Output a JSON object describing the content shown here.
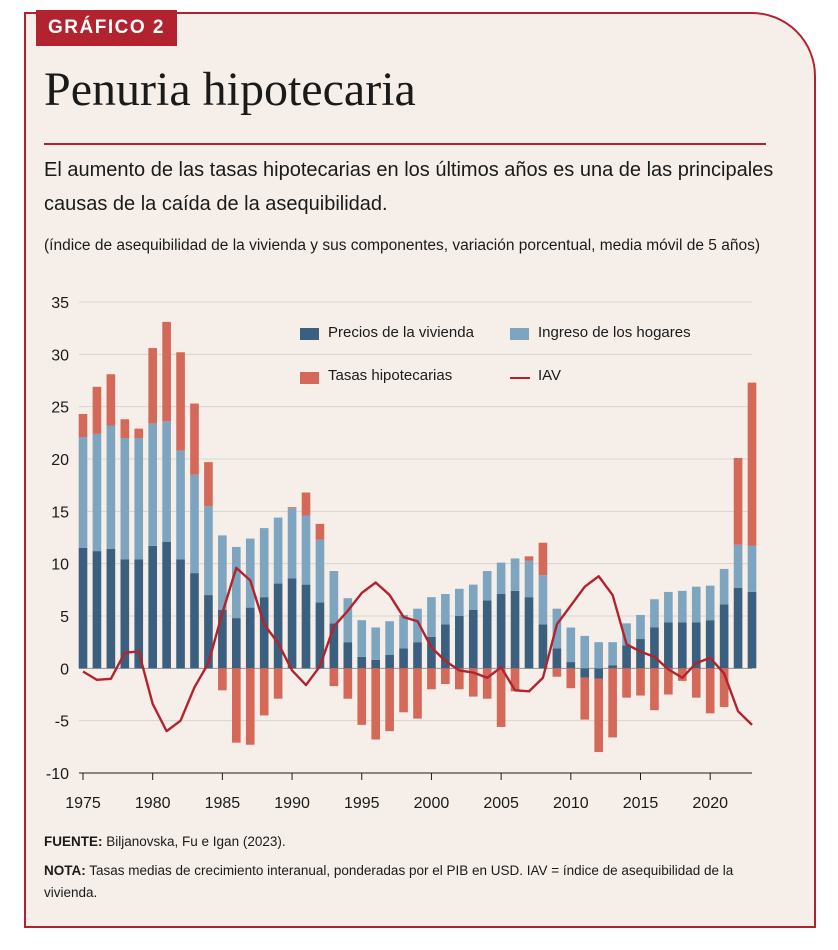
{
  "header": {
    "badge": "GRÁFICO 2",
    "title": "Penuria hipotecaria",
    "subtitle": "El aumento de las tasas hipotecarias en los últimos años es una de las principales causas de la caída de la asequibilidad.",
    "units": "(índice de asequibilidad de la vivienda y sus componentes, variación porcentual, media móvil de 5 años)"
  },
  "footer": {
    "source_label": "FUENTE:",
    "source_text": " Biljanovska, Fu e Igan (2023).",
    "note_label": "NOTA:",
    "note_text": " Tasas medias de crecimiento interanual, ponderadas por el PIB en USD. IAV = índice de asequibilidad de la vivienda."
  },
  "colors": {
    "prices": "#3a5f7f",
    "income": "#7ea5c0",
    "rates": "#d4695a",
    "iav": "#b3232f",
    "frame": "#b3232f",
    "background": "#f6efe9",
    "grid": "#d9d3ce"
  },
  "chart_data": {
    "type": "bar",
    "stacked": true,
    "x": [
      1975,
      1976,
      1977,
      1978,
      1979,
      1980,
      1981,
      1982,
      1983,
      1984,
      1985,
      1986,
      1987,
      1988,
      1989,
      1990,
      1991,
      1992,
      1993,
      1994,
      1995,
      1996,
      1997,
      1998,
      1999,
      2000,
      2001,
      2002,
      2003,
      2004,
      2005,
      2006,
      2007,
      2008,
      2009,
      2010,
      2011,
      2012,
      2013,
      2014,
      2015,
      2016,
      2017,
      2018,
      2019,
      2020,
      2021,
      2022,
      2023
    ],
    "series": [
      {
        "name": "Precios de la vivienda",
        "type": "bar",
        "values": [
          11.5,
          11.2,
          11.4,
          10.4,
          10.4,
          11.7,
          12.1,
          10.4,
          9.1,
          7.0,
          5.6,
          4.8,
          5.8,
          6.8,
          8.1,
          8.6,
          8.0,
          6.3,
          4.3,
          2.5,
          1.1,
          0.8,
          1.3,
          1.9,
          2.5,
          3.0,
          4.2,
          5.0,
          5.6,
          6.5,
          7.1,
          7.4,
          6.8,
          4.2,
          1.9,
          0.6,
          -0.9,
          -1.0,
          0.3,
          2.2,
          2.8,
          3.9,
          4.4,
          4.4,
          4.4,
          4.6,
          6.1,
          7.7,
          7.3
        ]
      },
      {
        "name": "Ingreso de los hogares",
        "type": "bar",
        "values": [
          10.6,
          11.2,
          11.8,
          11.6,
          11.6,
          11.7,
          11.5,
          10.4,
          9.4,
          8.5,
          7.1,
          6.8,
          6.6,
          6.6,
          6.3,
          6.7,
          6.6,
          6.0,
          5.0,
          4.2,
          3.5,
          3.1,
          3.2,
          3.2,
          3.2,
          3.8,
          2.9,
          2.6,
          2.4,
          2.8,
          3.0,
          3.1,
          3.5,
          4.7,
          3.8,
          3.3,
          3.1,
          2.5,
          2.2,
          2.1,
          2.3,
          2.7,
          2.9,
          3.0,
          3.4,
          3.3,
          3.4,
          4.1,
          4.4
        ]
      },
      {
        "name": "Tasas hipotecarias",
        "type": "bar",
        "values": [
          2.2,
          4.5,
          4.9,
          1.8,
          0.9,
          7.2,
          9.5,
          9.4,
          6.8,
          4.2,
          -2.1,
          -7.1,
          -7.3,
          -4.5,
          -2.9,
          0.1,
          2.2,
          1.5,
          -1.7,
          -2.9,
          -5.4,
          -6.8,
          -6.0,
          -4.2,
          -4.8,
          -2.0,
          -1.5,
          -2.0,
          -2.7,
          -2.9,
          -5.6,
          -2.2,
          0.4,
          3.1,
          -0.8,
          -1.9,
          -4.0,
          -7.0,
          -6.6,
          -2.8,
          -2.6,
          -4.0,
          -2.5,
          -1.2,
          -2.8,
          -4.3,
          -3.7,
          8.3,
          15.6
        ]
      },
      {
        "name": "IAV",
        "type": "line",
        "values": [
          -0.3,
          -1.1,
          -1.0,
          1.5,
          1.6,
          -3.4,
          -6.0,
          -5.0,
          -1.8,
          0.5,
          5.3,
          9.6,
          8.4,
          4.2,
          2.4,
          -0.2,
          -1.6,
          0.2,
          4.0,
          5.5,
          7.2,
          8.2,
          7.0,
          4.9,
          4.5,
          2.0,
          0.7,
          -0.2,
          -0.4,
          -0.9,
          0.1,
          -2.1,
          -2.2,
          -0.9,
          4.2,
          6.0,
          7.8,
          8.8,
          7.0,
          2.3,
          1.6,
          1.1,
          -0.1,
          -0.9,
          0.5,
          1.0,
          -0.5,
          -4.1,
          -5.4
        ]
      }
    ],
    "y_ticks": [
      35,
      30,
      25,
      20,
      15,
      10,
      5,
      0,
      -5,
      -10
    ],
    "x_ticks": [
      1975,
      1980,
      1985,
      1990,
      1995,
      2000,
      2005,
      2010,
      2015,
      2020
    ],
    "ylim": [
      -10,
      35
    ],
    "grid": "horizontal",
    "legend_placement": "top-right"
  }
}
